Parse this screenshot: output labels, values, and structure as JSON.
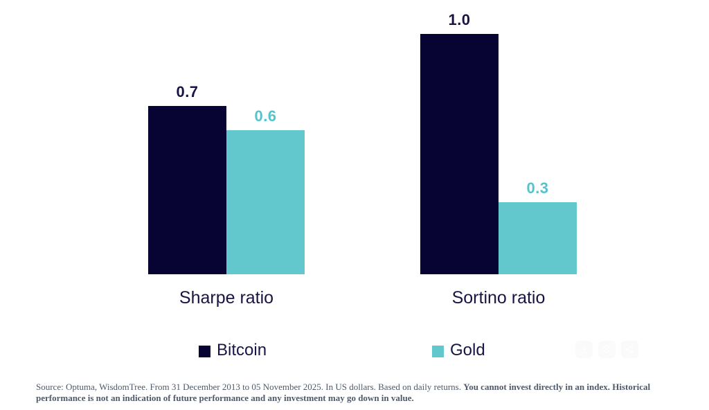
{
  "chart_data": {
    "type": "bar",
    "categories": [
      "Sharpe ratio",
      "Sortino ratio"
    ],
    "series": [
      {
        "name": "Bitcoin",
        "color": "#070433",
        "label_color": "#181545",
        "values": [
          0.7,
          1.0
        ],
        "labels": [
          "0.7",
          "1.0"
        ]
      },
      {
        "name": "Gold",
        "color": "#63c7ce",
        "label_color": "#55c3cd",
        "values": [
          0.6,
          0.3
        ],
        "labels": [
          "0.6",
          "0.3"
        ]
      }
    ],
    "title": "",
    "xlabel": "",
    "ylabel": "",
    "ylim": [
      0,
      1.0
    ],
    "grid": false,
    "axis_lines": false,
    "legend_position": "bottom"
  },
  "legend": {
    "items": [
      {
        "label": "Bitcoin",
        "color": "#070433"
      },
      {
        "label": "Gold",
        "color": "#63c7ce"
      }
    ]
  },
  "overlay_buttons": [
    {
      "icon": "download-icon"
    },
    {
      "icon": "lens-icon"
    },
    {
      "icon": "share-icon"
    }
  ],
  "footer": {
    "source_regular": "Source: Optuma, WisdomTree. From 31 December 2013 to 05 November 2025. In US dollars. Based on daily returns. ",
    "source_bold": "You cannot invest directly in an index. Historical performance is not an indication of future performance and any investment may go down in value."
  },
  "colors": {
    "bitcoin": "#070433",
    "gold": "#63c7ce",
    "category_text": "#181545",
    "footer_text": "#4e5a69",
    "background": "#ffffff"
  }
}
